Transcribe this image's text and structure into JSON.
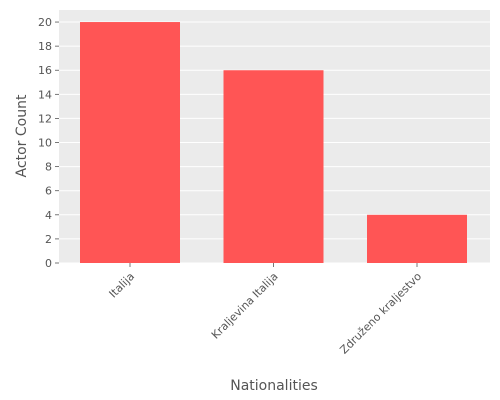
{
  "chart_data": {
    "type": "bar",
    "categories": [
      "Italija",
      "Kraljevina Italija",
      "Združeno kraljestvo"
    ],
    "values": [
      20,
      16,
      4
    ],
    "xlabel": "Nationalities",
    "ylabel": "Actor Count",
    "ylim": [
      0,
      21
    ],
    "yticks": [
      0,
      2,
      4,
      6,
      8,
      10,
      12,
      14,
      16,
      18,
      20
    ],
    "grid": true,
    "colors": {
      "bar": "#ff5555",
      "plot_background": "#ebebeb",
      "grid": "#ffffff",
      "text": "#555555"
    }
  }
}
